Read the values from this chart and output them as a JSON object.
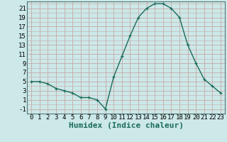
{
  "x": [
    0,
    1,
    2,
    3,
    4,
    5,
    6,
    7,
    8,
    9,
    10,
    11,
    12,
    13,
    14,
    15,
    16,
    17,
    18,
    19,
    20,
    21,
    22,
    23
  ],
  "y": [
    5,
    5,
    4.5,
    3.5,
    3,
    2.5,
    1.5,
    1.5,
    1,
    -1,
    6,
    10.5,
    15,
    19,
    21,
    22,
    22,
    21,
    19,
    13,
    9,
    5.5,
    4,
    2.5
  ],
  "line_color": "#1a6b5a",
  "bg_color": "#cce8e8",
  "grid_color": "#c8a8a8",
  "xlabel": "Humidex (Indice chaleur)",
  "ylim": [
    -2,
    22.5
  ],
  "xlim": [
    -0.5,
    23.5
  ],
  "yticks": [
    -1,
    1,
    3,
    5,
    7,
    9,
    11,
    13,
    15,
    17,
    19,
    21
  ],
  "xticks": [
    0,
    1,
    2,
    3,
    4,
    5,
    6,
    7,
    8,
    9,
    10,
    11,
    12,
    13,
    14,
    15,
    16,
    17,
    18,
    19,
    20,
    21,
    22,
    23
  ],
  "marker": "+",
  "markersize": 3.5,
  "linewidth": 1.0,
  "xlabel_fontsize": 8,
  "tick_fontsize": 6.5
}
